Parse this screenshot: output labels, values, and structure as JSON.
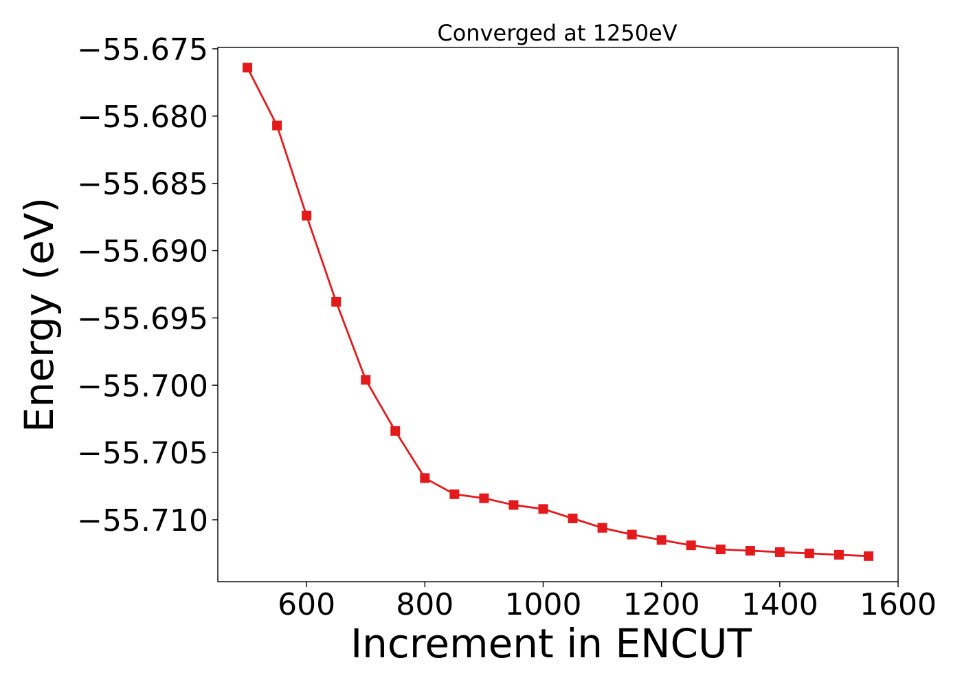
{
  "chart_data": {
    "type": "line",
    "title": "Converged at 1250eV",
    "xlabel": "Increment in ENCUT",
    "ylabel": "Energy (eV)",
    "xlim": [
      450,
      1600
    ],
    "ylim": [
      -55.7146,
      -55.6749
    ],
    "x_ticks": [
      600,
      800,
      1000,
      1200,
      1400,
      1600
    ],
    "x_tick_labels": [
      "600",
      "800",
      "1000",
      "1200",
      "1400",
      "1600"
    ],
    "y_ticks": [
      -55.675,
      -55.68,
      -55.685,
      -55.69,
      -55.695,
      -55.7,
      -55.705,
      -55.71
    ],
    "y_tick_labels": [
      "−55.675",
      "−55.680",
      "−55.685",
      "−55.690",
      "−55.695",
      "−55.700",
      "−55.705",
      "−55.710"
    ],
    "grid": false,
    "series": [
      {
        "color": "#e31a1c",
        "marker": "square",
        "x": [
          500,
          550,
          600,
          650,
          700,
          750,
          800,
          850,
          900,
          950,
          1000,
          1050,
          1100,
          1150,
          1200,
          1250,
          1300,
          1350,
          1400,
          1450,
          1500,
          1550
        ],
        "y": [
          -55.6764,
          -55.6807,
          -55.6874,
          -55.6938,
          -55.6996,
          -55.7034,
          -55.7069,
          -55.7081,
          -55.7084,
          -55.7089,
          -55.7092,
          -55.7099,
          -55.7106,
          -55.7111,
          -55.7115,
          -55.7119,
          -55.7122,
          -55.7123,
          -55.7124,
          -55.7125,
          -55.7126,
          -55.7127
        ]
      }
    ]
  }
}
